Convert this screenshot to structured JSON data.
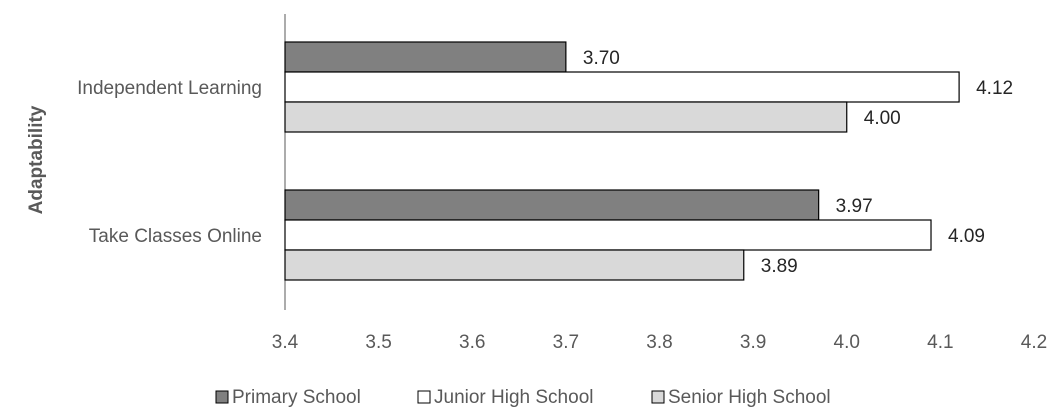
{
  "chart_data": {
    "type": "bar",
    "orientation": "horizontal",
    "ylabel": "Adaptability",
    "xlabel": "",
    "categories": [
      "Independent Learning",
      "Take Classes Online"
    ],
    "series": [
      {
        "name": "Primary School",
        "values": [
          3.7,
          3.97
        ],
        "labels": [
          "3.70",
          "3.97"
        ],
        "color": "#808080"
      },
      {
        "name": "Junior High School",
        "values": [
          4.12,
          4.09
        ],
        "labels": [
          "4.12",
          "4.09"
        ],
        "color": "#ffffff"
      },
      {
        "name": "Senior High School",
        "values": [
          4.0,
          3.89
        ],
        "labels": [
          "4.00",
          "3.89"
        ],
        "color": "#d9d9d9"
      }
    ],
    "xlim": [
      3.4,
      4.2
    ],
    "xticks": [
      3.4,
      3.5,
      3.6,
      3.7,
      3.8,
      3.9,
      4.0,
      4.1,
      4.2
    ],
    "xtick_labels": [
      "3.4",
      "3.5",
      "3.6",
      "3.7",
      "3.8",
      "3.9",
      "4.0",
      "4.1",
      "4.2"
    ],
    "grid": false,
    "legend_position": "bottom"
  }
}
